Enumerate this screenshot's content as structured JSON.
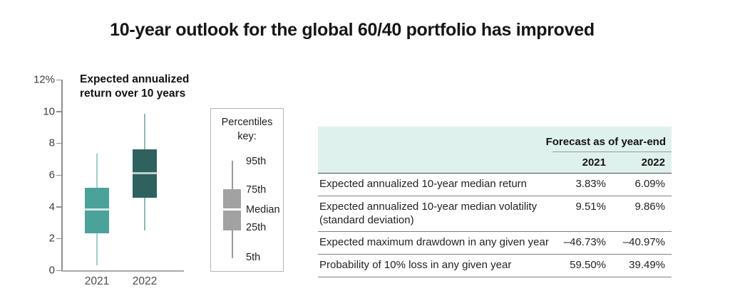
{
  "page": {
    "title": "10-year outlook for the global 60/40 portfolio has improved"
  },
  "chart_data": [
    {
      "type": "boxplot",
      "title": "Expected annualized return over 10 years",
      "unit": "percent",
      "ylim": [
        0,
        12
      ],
      "grid": false,
      "yticks": [
        {
          "value": 12,
          "label": "12%"
        },
        {
          "value": 10,
          "label": "10"
        },
        {
          "value": 8,
          "label": "8"
        },
        {
          "value": 6,
          "label": "6"
        },
        {
          "value": 4,
          "label": "4"
        },
        {
          "value": 2,
          "label": "2"
        },
        {
          "value": 0,
          "label": "0"
        }
      ],
      "categories": [
        "2021",
        "2022"
      ],
      "series": [
        {
          "name": "2021",
          "p5": 0.3,
          "p25": 2.35,
          "median": 3.83,
          "p75": 5.2,
          "p95": 7.35,
          "box_color": "#4AA29B",
          "whisker_color": "#A3CFCA",
          "median_color": "#D4E8E5"
        },
        {
          "name": "2022",
          "p5": 2.5,
          "p25": 4.55,
          "median": 6.09,
          "p75": 7.6,
          "p95": 9.85,
          "box_color": "#2F615E",
          "whisker_color": "#93B7B3",
          "median_color": "#BACFCC"
        }
      ],
      "legend": {
        "title": "Percentiles\nkey:",
        "labels": [
          "95th",
          "75th",
          "Median",
          "25th",
          "5th"
        ],
        "position": "right-of-plot"
      }
    },
    {
      "type": "table",
      "group_header": "Forecast as of year-end",
      "columns": [
        "2021",
        "2022"
      ],
      "rows": [
        {
          "label": "Expected annualized 10-year median return",
          "values": [
            "3.83%",
            "6.09%"
          ]
        },
        {
          "label": "Expected annualized 10-year median volatility\n(standard deviation)",
          "values": [
            "9.51%",
            "9.86%"
          ]
        },
        {
          "label": "Expected maximum drawdown in any given year",
          "values": [
            "–46.73%",
            "–40.97%"
          ]
        },
        {
          "label": "Probability of 10% loss in any given year",
          "values": [
            "59.50%",
            "39.49%"
          ]
        }
      ],
      "header_bg_color": "#DFF1EC"
    }
  ]
}
